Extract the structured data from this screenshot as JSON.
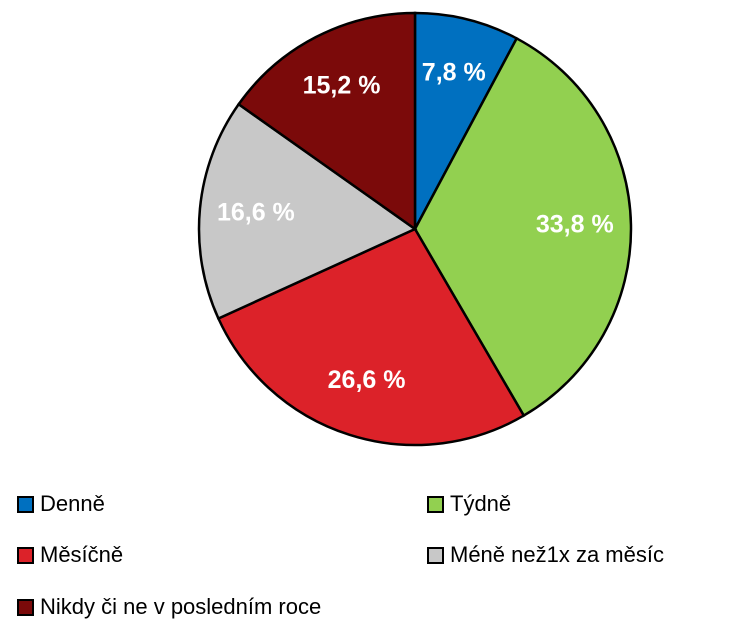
{
  "chart_data": {
    "type": "pie",
    "categories": [
      "Denně",
      "Týdně",
      "Měsíčně",
      "Méně než1x za měsíc",
      "Nikdy či ne v posledním roce"
    ],
    "values": [
      7.8,
      33.8,
      26.6,
      16.6,
      15.2
    ],
    "value_labels": [
      "7,8 %",
      "33,8 %",
      "26,6 %",
      "16,6 %",
      "15,2 %"
    ],
    "colors": [
      "#0070c0",
      "#92d050",
      "#dc2229",
      "#c8c8c8",
      "#7b0a0a"
    ]
  }
}
